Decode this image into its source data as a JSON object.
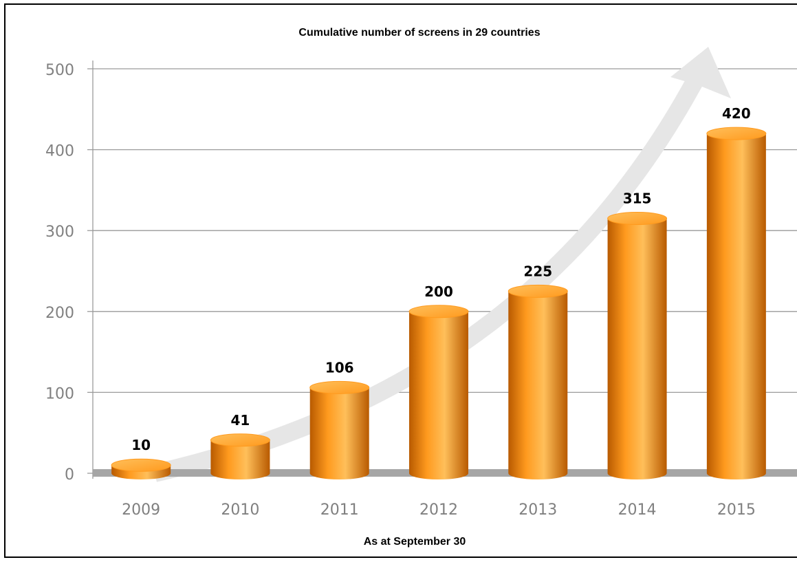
{
  "chart_data": {
    "type": "bar",
    "title": "Cumulative number of screens in 29 countries",
    "footnote": "As at September 30",
    "categories": [
      "2009",
      "2010",
      "2011",
      "2012",
      "2013",
      "2014",
      "2015"
    ],
    "values": [
      10,
      41,
      106,
      200,
      225,
      315,
      420
    ],
    "ylim": [
      0,
      500
    ],
    "yticks": [
      0,
      100,
      200,
      300,
      400,
      500
    ],
    "grid": true,
    "legend": "none",
    "trend_arrow": true,
    "colors": {
      "bar_light": "#ffbf5a",
      "bar_mid": "#ff9a1e",
      "bar_dark": "#b85a00",
      "bar_top": "#ffb347",
      "arrow": "#e6e6e6",
      "floor": "#a6a6a6"
    }
  }
}
